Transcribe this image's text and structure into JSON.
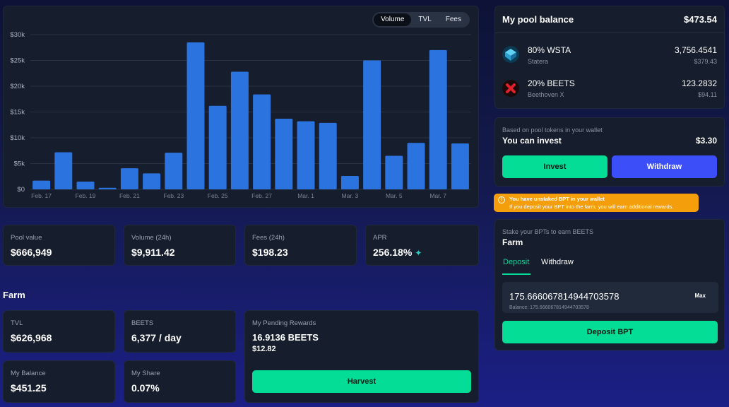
{
  "chart_tabs": {
    "volume": "Volume",
    "tvl": "TVL",
    "fees": "Fees"
  },
  "chart_data": {
    "type": "bar",
    "categories": [
      "Feb. 17",
      "",
      "Feb. 19",
      "",
      "Feb. 21",
      "",
      "Feb. 23",
      "",
      "Feb. 25",
      "",
      "Feb. 27",
      "",
      "Mar. 1",
      "",
      "Mar. 3",
      "",
      "Mar. 5",
      "",
      "Mar. 7",
      ""
    ],
    "values": [
      1700,
      7200,
      1500,
      300,
      4100,
      3100,
      7100,
      28500,
      16200,
      22800,
      18400,
      13700,
      13200,
      12900,
      2600,
      25000,
      6500,
      9000,
      27000,
      8900
    ],
    "y_ticks": [
      "$0",
      "$5k",
      "$10k",
      "$15k",
      "$20k",
      "$25k",
      "$30k"
    ],
    "y_tick_values": [
      0,
      5000,
      10000,
      15000,
      20000,
      25000,
      30000
    ],
    "ylim": [
      0,
      30000
    ],
    "bar_color": "#2b74e0",
    "grid": true
  },
  "stats": {
    "pool_value_label": "Pool value",
    "pool_value": "$666,949",
    "volume_label": "Volume (24h)",
    "volume": "$9,911.42",
    "fees_label": "Fees (24h)",
    "fees": "$198.23",
    "apr_label": "APR",
    "apr": "256.18%"
  },
  "farm": {
    "title": "Farm",
    "tvl_label": "TVL",
    "tvl": "$626,968",
    "beets_label": "BEETS",
    "beets": "6,377 / day",
    "my_balance_label": "My Balance",
    "my_balance": "$451.25",
    "my_share_label": "My Share",
    "my_share": "0.07%",
    "pending_label": "My Pending Rewards",
    "pending_beets": "16.9136 BEETS",
    "pending_usd": "$12.82",
    "harvest_button": "Harvest"
  },
  "pool_balance": {
    "title": "My pool balance",
    "total": "$473.54",
    "tokens": [
      {
        "name": "80% WSTA",
        "sub": "Statera",
        "amount": "3,756.4541",
        "usd": "$379.43"
      },
      {
        "name": "20% BEETS",
        "sub": "Beethoven X",
        "amount": "123.2832",
        "usd": "$94.11"
      }
    ]
  },
  "invest": {
    "hint": "Based on pool tokens in your wallet",
    "label": "You can invest",
    "amount": "$3.30",
    "invest_button": "Invest",
    "withdraw_button": "Withdraw"
  },
  "warning": {
    "title": "You have unstaked BPT in your wallet",
    "body": "If you deposit your BPT into the farm, you will earn additional rewards."
  },
  "stake": {
    "hint": "Stake your BPTs to earn BEETS",
    "title": "Farm",
    "tab_deposit": "Deposit",
    "tab_withdraw": "Withdraw",
    "amount": "175.666067814944703578",
    "max_button": "Max",
    "balance_text": "Balance: 175.666067814944703578",
    "deposit_button": "Deposit BPT"
  },
  "colors": {
    "accent_green": "#04dd96",
    "accent_blue": "#3b4ef7",
    "warning": "#f59e0b",
    "card_bg": "#161d2c"
  }
}
